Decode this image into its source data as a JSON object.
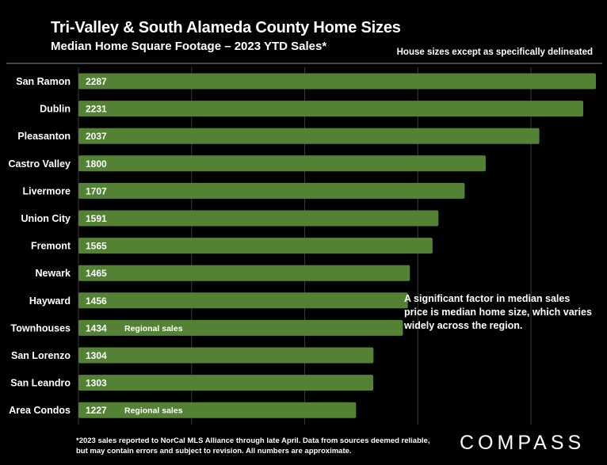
{
  "header": {
    "title": "Tri-Valley & South Alameda County Home Sizes",
    "subtitle": "Median Home Square Footage – 2023 YTD Sales*",
    "note": "House sizes except as specifically delineated"
  },
  "annotation": "A significant factor in median sales price is median home size, which varies widely across the region.",
  "footnote": "*2023 sales reported to NorCal MLS Alliance through late April. Data from sources deemed reliable, but may contain errors and subject to revision. All numbers are approximate.",
  "brand": "COMPASS",
  "colors": {
    "bar": "#548235",
    "background": "#000000",
    "gridline": "#3a3a3a"
  },
  "chart_data": {
    "type": "bar",
    "orientation": "horizontal",
    "title": "Tri-Valley & South Alameda County Home Sizes",
    "subtitle": "Median Home Square Footage – 2023 YTD Sales*",
    "xlabel": "",
    "ylabel": "",
    "xlim": [
      0,
      2300
    ],
    "grid": true,
    "categories": [
      "San Ramon",
      "Dublin",
      "Pleasanton",
      "Castro Valley",
      "Livermore",
      "Union City",
      "Fremont",
      "Newark",
      "Hayward",
      "Townhouses",
      "San Lorenzo",
      "San Leandro",
      "Area Condos"
    ],
    "values": [
      2287,
      2231,
      2037,
      1800,
      1707,
      1591,
      1565,
      1465,
      1456,
      1434,
      1304,
      1303,
      1227
    ],
    "bar_notes": [
      "",
      "",
      "",
      "",
      "",
      "",
      "",
      "",
      "",
      "Regional sales",
      "",
      "",
      "Regional sales"
    ]
  }
}
